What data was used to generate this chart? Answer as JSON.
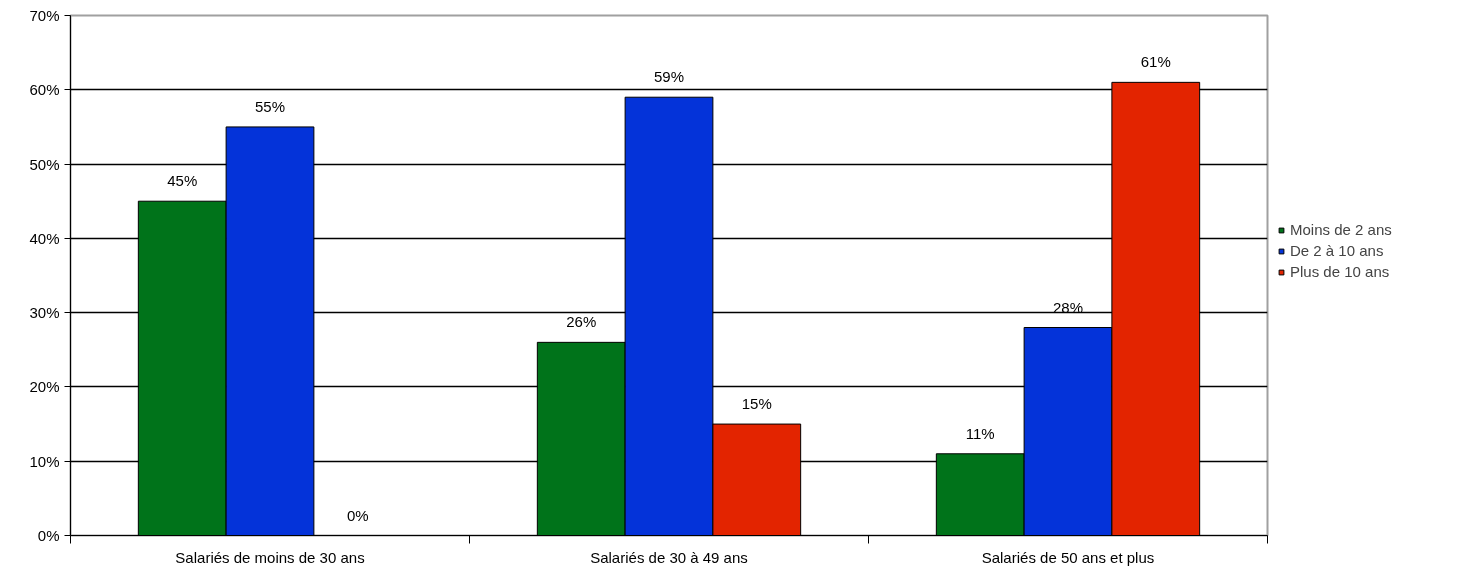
{
  "chart_data": {
    "type": "bar",
    "categories": [
      "Salariés de moins de 30 ans",
      "Salariés de 30 à 49 ans",
      "Salariés de 50 ans et plus"
    ],
    "series": [
      {
        "name": "Moins de 2 ans",
        "color": "#00731a",
        "values": [
          45,
          26,
          11
        ],
        "value_labels": [
          "45%",
          "26%",
          "11%"
        ]
      },
      {
        "name": "De 2 à 10 ans",
        "color": "#0433d9",
        "values": [
          55,
          59,
          28
        ],
        "value_labels": [
          "55%",
          "59%",
          "28%"
        ]
      },
      {
        "name": "Plus de 10 ans",
        "color": "#e32400",
        "values": [
          0,
          15,
          61
        ],
        "value_labels": [
          "0%",
          "15%",
          "61%"
        ]
      }
    ],
    "ylim": [
      0,
      70
    ],
    "yticks": [
      {
        "value": 0,
        "label": "0%"
      },
      {
        "value": 10,
        "label": "10%"
      },
      {
        "value": 20,
        "label": "20%"
      },
      {
        "value": 30,
        "label": "30%"
      },
      {
        "value": 40,
        "label": "40%"
      },
      {
        "value": 50,
        "label": "50%"
      },
      {
        "value": 60,
        "label": "60%"
      },
      {
        "value": 70,
        "label": "70%"
      }
    ],
    "grid": "y",
    "legend": "right"
  }
}
